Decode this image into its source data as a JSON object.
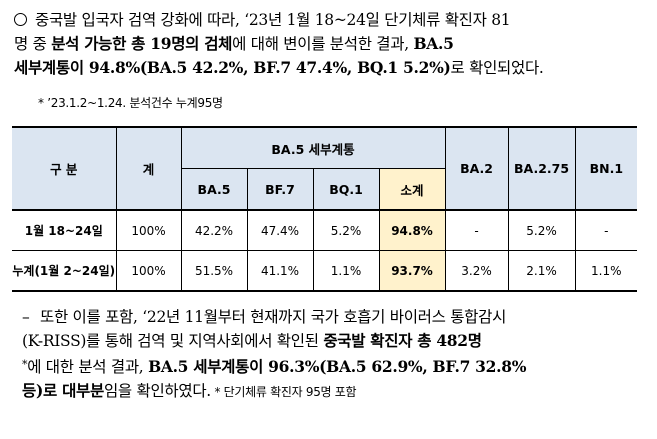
{
  "paragraph1": {
    "line1": "중국발 입국자 검역 강화에 따라, ‘23년 1월 18~24일 단기체류 확진자 81",
    "line2a": "명 중 ",
    "line2b": "분석 가능한 총 19명의 검체",
    "line2c": "에 대해 변이를 분석한 결과, ",
    "line2d": "BA.5",
    "line3a": "세부계통이",
    "line3b": " 94.8%(BA.5 42.2%, BF.7 47.4%, BQ.1 5.2%)",
    "line3c": "로 확인되었다."
  },
  "note1": "* ’23.1.2~1.24. 분석건수 누계95명",
  "table": {
    "header": {
      "col_gubun": "구 분",
      "col_total": "계",
      "col_group": "BA.5 세부계통",
      "sub_ba5": "BA.5",
      "sub_bf7": "BF.7",
      "sub_bq1": "BQ.1",
      "sub_subtotal": "소계",
      "col_ba2": "BA.2",
      "col_ba275": "BA.2.75",
      "col_bn1": "BN.1"
    },
    "rows": [
      {
        "label": "1월 18~24일",
        "total": "100%",
        "ba5": "42.2%",
        "bf7": "47.4%",
        "bq1": "5.2%",
        "subtotal": "94.8%",
        "ba2": "-",
        "ba275": "5.2%",
        "bn1": "-"
      },
      {
        "label": "누계(1월 2~24일)",
        "total": "100%",
        "ba5": "51.5%",
        "bf7": "41.1%",
        "bq1": "1.1%",
        "subtotal": "93.7%",
        "ba2": "3.2%",
        "ba275": "2.1%",
        "bn1": "1.1%"
      }
    ]
  },
  "paragraph2": {
    "line1": "또한 이를 포함, ‘22년 11월부터 현재까지 국가 호흡기 바이러스 통합감시",
    "line2a": "(K-RISS)를 통해 검역 및 지역사회에서 확인된 ",
    "line2b": "중국발 확진자 총 482명",
    "line3a": "*",
    "line3b": "에 대한 분석 결과, ",
    "line3c": "BA.5 세부계통이 96.3%(BA.5 62.9%, BF.7 32.8%",
    "line4a": "등)로 ",
    "line4b": "대부분",
    "line4c": "임을 확인하였다.",
    "line4note": " * 단기체류 확진자 95명 포함"
  }
}
